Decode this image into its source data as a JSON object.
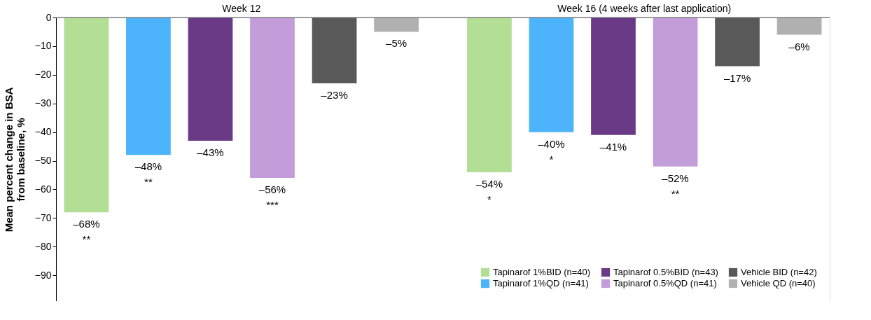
{
  "chart_data": {
    "type": "bar",
    "categories": [
      "Week 12",
      "Week 16 (4 weeks after last application)"
    ],
    "ylabel": "Mean percent change in BSA\nfrom baseline, %",
    "ylim": [
      -99,
      0
    ],
    "yticks": [
      0,
      -10,
      -20,
      -30,
      -40,
      -50,
      -60,
      -70,
      -80,
      -90
    ],
    "grid": false,
    "legend": "bottom right",
    "series": [
      {
        "name": "Tapinarof 1%BID (n=40)",
        "color": "#b3de96",
        "values": [
          -68,
          -54
        ],
        "value_labels": [
          "–68%\n**",
          "–54%\n*"
        ]
      },
      {
        "name": "Tapinarof 1%QD (n=41)",
        "color": "#4db3fa",
        "values": [
          -48,
          -40
        ],
        "value_labels": [
          "–48%\n**",
          "–40%\n*"
        ]
      },
      {
        "name": "Tapinarof 0.5%BID (n=43)",
        "color": "#6b3a87",
        "values": [
          -43,
          -41
        ],
        "value_labels": [
          "–43%",
          "–41%"
        ]
      },
      {
        "name": "Tapinarof 0.5%QD (n=41)",
        "color": "#c39cda",
        "values": [
          -56,
          -52
        ],
        "value_labels": [
          "–56%\n***",
          "–52%\n\n**"
        ]
      },
      {
        "name": "Vehicle BID (n=42)",
        "color": "#595959",
        "values": [
          -23,
          -17
        ],
        "value_labels": [
          "–23%",
          "–17%"
        ]
      },
      {
        "name": "Vehicle QD (n=40)",
        "color": "#b0b0b0",
        "values": [
          -5,
          -6
        ],
        "value_labels": [
          "–5%",
          "–6%"
        ]
      }
    ]
  }
}
